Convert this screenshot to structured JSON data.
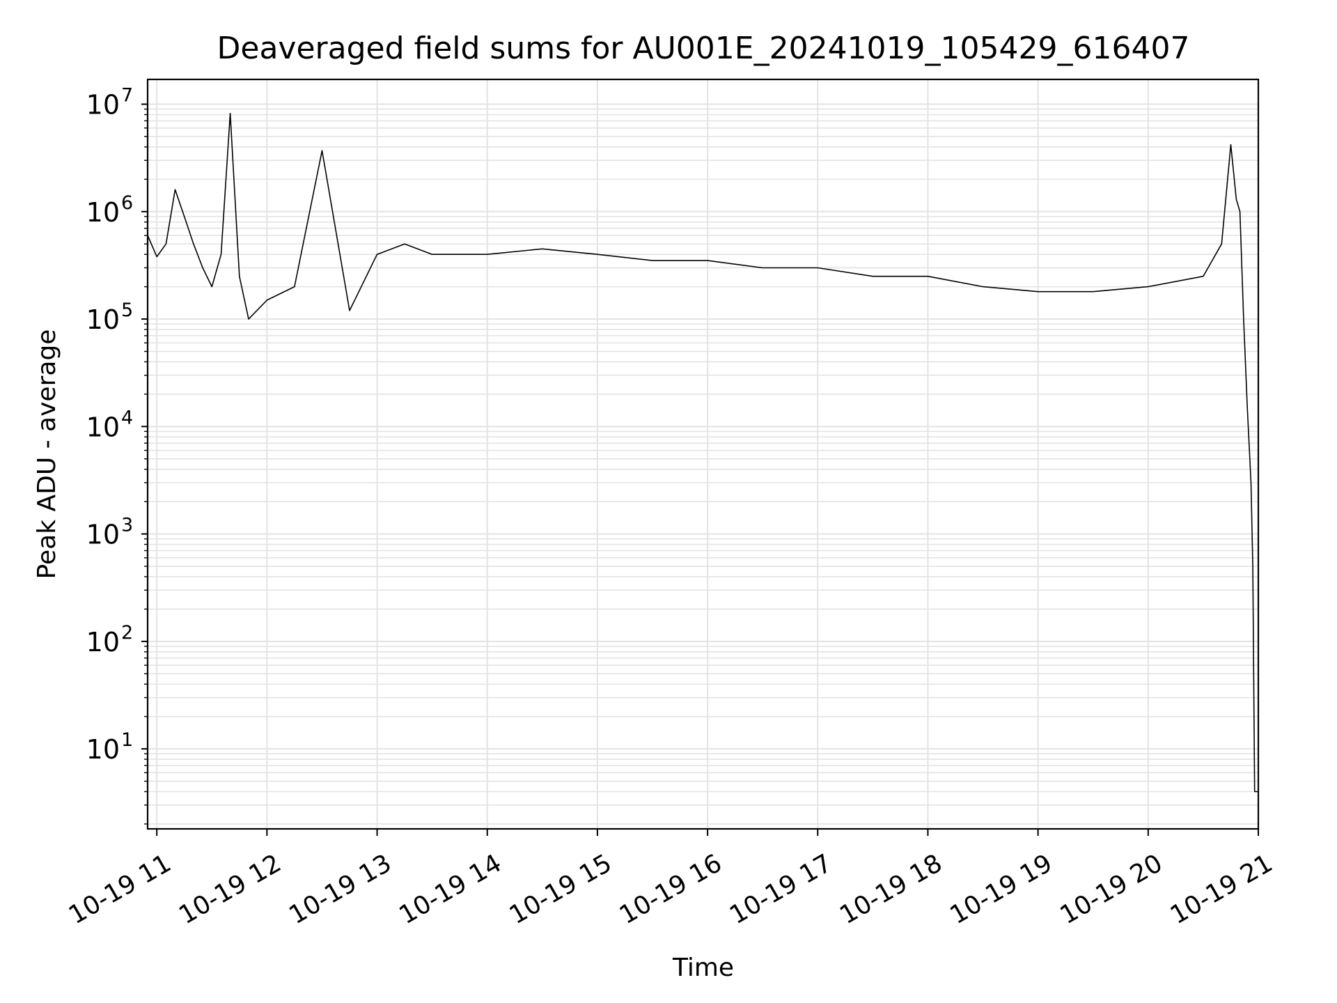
{
  "chart_data": {
    "type": "line",
    "title": "Deaveraged field sums for AU001E_20241019_105429_616407",
    "xlabel": "Time",
    "ylabel": "Peak ADU - average",
    "y_scale": "log",
    "ylim": [
      1.8,
      17000000.0
    ],
    "xlim": [
      "2024-10-19 10:55",
      "2024-10-19 21:00"
    ],
    "x_ticks": [
      "10-19 11",
      "10-19 12",
      "10-19 13",
      "10-19 14",
      "10-19 15",
      "10-19 16",
      "10-19 17",
      "10-19 18",
      "10-19 19",
      "10-19 20",
      "10-19 21"
    ],
    "y_ticks": [
      {
        "base": "10",
        "exp": "1"
      },
      {
        "base": "10",
        "exp": "2"
      },
      {
        "base": "10",
        "exp": "3"
      },
      {
        "base": "10",
        "exp": "4"
      },
      {
        "base": "10",
        "exp": "5"
      },
      {
        "base": "10",
        "exp": "6"
      },
      {
        "base": "10",
        "exp": "7"
      }
    ],
    "grid": true,
    "line_color": "#000000",
    "series": [
      {
        "name": "",
        "x": [
          "2024-10-19 10:55",
          "2024-10-19 11:00",
          "2024-10-19 11:05",
          "2024-10-19 11:10",
          "2024-10-19 11:15",
          "2024-10-19 11:20",
          "2024-10-19 11:25",
          "2024-10-19 11:30",
          "2024-10-19 11:35",
          "2024-10-19 11:40",
          "2024-10-19 11:45",
          "2024-10-19 11:50",
          "2024-10-19 12:00",
          "2024-10-19 12:15",
          "2024-10-19 12:30",
          "2024-10-19 12:45",
          "2024-10-19 13:00",
          "2024-10-19 13:15",
          "2024-10-19 13:30",
          "2024-10-19 14:00",
          "2024-10-19 14:30",
          "2024-10-19 15:00",
          "2024-10-19 15:30",
          "2024-10-19 16:00",
          "2024-10-19 16:30",
          "2024-10-19 17:00",
          "2024-10-19 17:30",
          "2024-10-19 18:00",
          "2024-10-19 18:30",
          "2024-10-19 19:00",
          "2024-10-19 19:30",
          "2024-10-19 20:00",
          "2024-10-19 20:30",
          "2024-10-19 20:40",
          "2024-10-19 20:45",
          "2024-10-19 20:48",
          "2024-10-19 20:50",
          "2024-10-19 20:52",
          "2024-10-19 20:54",
          "2024-10-19 20:56",
          "2024-10-19 20:57",
          "2024-10-19 20:58",
          "2024-10-19 21:00"
        ],
        "y": [
          600000,
          380000,
          500000,
          1600000,
          900000,
          500000,
          300000,
          200000,
          400000,
          8200000,
          250000,
          100000,
          150000,
          200000,
          3700000,
          120000,
          400000,
          500000,
          400000,
          400000,
          450000,
          400000,
          350000,
          350000,
          300000,
          300000,
          250000,
          250000,
          200000,
          180000,
          180000,
          200000,
          250000,
          500000,
          4200000,
          1300000,
          1000000,
          100000,
          15000,
          3000,
          500,
          4,
          4
        ]
      }
    ]
  }
}
